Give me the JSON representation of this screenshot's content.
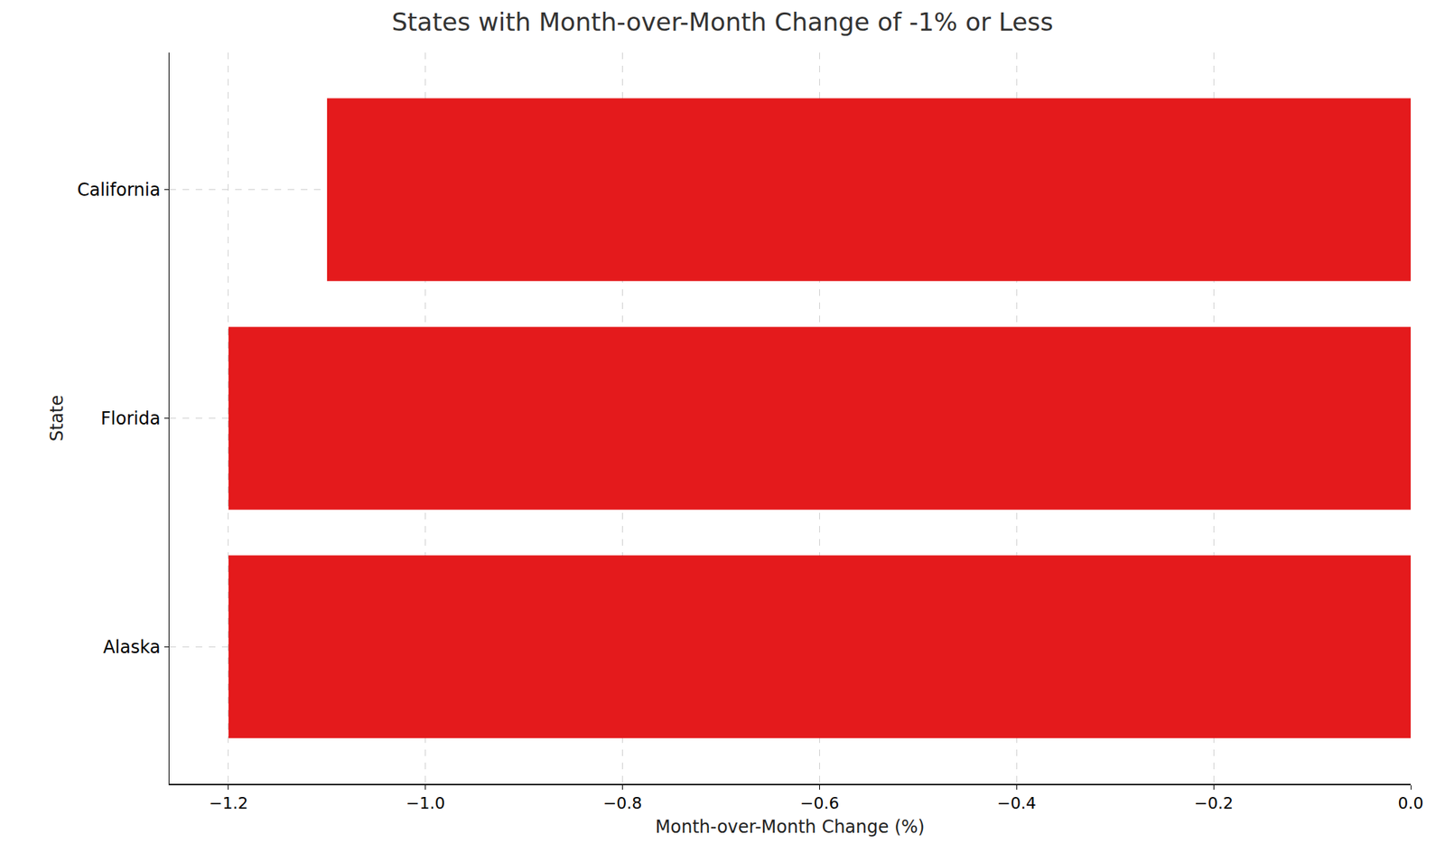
{
  "chart_data": {
    "type": "bar",
    "orientation": "horizontal",
    "title": "States with Month-over-Month Change of -1% or Less",
    "x_label": "Month-over-Month Change (%)",
    "y_label": "State",
    "categories": [
      "Alaska",
      "Florida",
      "California"
    ],
    "values": [
      -1.2,
      -1.2,
      -1.1
    ],
    "color": "#e41a1c",
    "xlim": [
      -1.26,
      0.0
    ],
    "xticks": [
      {
        "value": -1.2,
        "label": "−1.2"
      },
      {
        "value": -1.0,
        "label": "−1.0"
      },
      {
        "value": -0.8,
        "label": "−0.8"
      },
      {
        "value": -0.6,
        "label": "−0.6"
      },
      {
        "value": -0.4,
        "label": "−0.4"
      },
      {
        "value": -0.2,
        "label": "−0.2"
      },
      {
        "value": 0.0,
        "label": "0.0"
      }
    ],
    "grid": true
  }
}
